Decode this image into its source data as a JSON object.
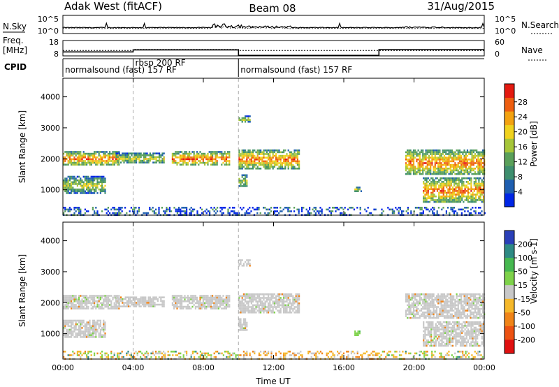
{
  "header": {
    "title": "Adak West (fitACF)",
    "beam": "Beam 08",
    "date": "31/Aug/2015"
  },
  "status_panels": {
    "nsky_label": "N.Sky",
    "nsearch_label": "N.Search",
    "nsky_ticks": [
      "10^5",
      "10^0"
    ],
    "nsearch_ticks": [
      "10^5",
      "10^0"
    ],
    "freq_label_line1": "Freq.",
    "freq_label_line2": "[MHz]",
    "freq_ticks": [
      "18",
      "8"
    ],
    "nave_label": "Nave",
    "nave_ticks": [
      "60",
      "0"
    ],
    "freq_levels_mhz": [
      {
        "x_start": 0,
        "x_end": 4.0,
        "value": 10.6
      },
      {
        "x_start": 4.0,
        "x_end": 10.0,
        "value": 11.9
      },
      {
        "x_start": 10.0,
        "x_end": 18.0,
        "value": 8.3
      },
      {
        "x_start": 18.0,
        "x_end": 24.0,
        "value": 12.1
      }
    ],
    "nave_levels": [
      {
        "x_start": 0,
        "x_end": 4.0,
        "value": 21
      },
      {
        "x_start": 4.0,
        "x_end": 10.0,
        "value": 25
      },
      {
        "x_start": 10.0,
        "x_end": 24.0,
        "value": 21
      }
    ]
  },
  "cpid": {
    "label": "CPID",
    "segments": [
      {
        "text": "normalsound (fast) 157 RF",
        "x_start": 0
      },
      {
        "text": "rbsp 200 RF",
        "x_start": 4.0
      },
      {
        "text": "normalsound (fast) 157 RF",
        "x_start": 10.0
      }
    ]
  },
  "chart_data": [
    {
      "type": "heatmap",
      "name": "Power",
      "ylabel": "Slant Range [km]",
      "ylim": [
        180,
        4600
      ],
      "yticks": [
        "1000",
        "2000",
        "3000",
        "4000"
      ],
      "xlim": [
        0,
        24
      ],
      "colorbar": {
        "label": "Power [dB]",
        "ticks": [
          "4",
          "8",
          "12",
          "16",
          "20",
          "24",
          "28"
        ],
        "colors": [
          "#0026e6",
          "#1f5fb0",
          "#3e8e6e",
          "#5aa05a",
          "#a6c639",
          "#f0d21e",
          "#f3a210",
          "#ee5e10",
          "#e41a10"
        ]
      },
      "echo_regions": [
        {
          "x_start": 0.0,
          "x_end": 3.2,
          "range_start": 1800,
          "range_end": 2250,
          "level": "high"
        },
        {
          "x_start": 0.0,
          "x_end": 2.4,
          "range_start": 900,
          "range_end": 1450,
          "level": "medium"
        },
        {
          "x_start": 3.0,
          "x_end": 5.8,
          "range_start": 1850,
          "range_end": 2200,
          "level": "medium"
        },
        {
          "x_start": 6.2,
          "x_end": 9.5,
          "range_start": 1800,
          "range_end": 2250,
          "level": "high"
        },
        {
          "x_start": 10.0,
          "x_end": 13.5,
          "range_start": 1700,
          "range_end": 2300,
          "level": "high"
        },
        {
          "x_start": 10.0,
          "x_end": 10.5,
          "range_start": 1100,
          "range_end": 1500,
          "level": "medium"
        },
        {
          "x_start": 10.0,
          "x_end": 10.7,
          "range_start": 3200,
          "range_end": 3400,
          "level": "medium"
        },
        {
          "x_start": 16.6,
          "x_end": 17.0,
          "range_start": 950,
          "range_end": 1100,
          "level": "medium"
        },
        {
          "x_start": 19.5,
          "x_end": 24.0,
          "range_start": 1500,
          "range_end": 2300,
          "level": "high"
        },
        {
          "x_start": 20.5,
          "x_end": 24.0,
          "range_start": 600,
          "range_end": 1400,
          "level": "high"
        },
        {
          "x_start": 0.0,
          "x_end": 24.0,
          "range_start": 180,
          "range_end": 450,
          "level": "low"
        }
      ]
    },
    {
      "type": "heatmap",
      "name": "Velocity",
      "ylabel": "Slant Range [km]",
      "ylim": [
        180,
        4600
      ],
      "yticks": [
        "1000",
        "2000",
        "3000",
        "4000"
      ],
      "xlabel": "Time UT",
      "xlim": [
        0,
        24
      ],
      "xticks": [
        "00:00",
        "04:00",
        "08:00",
        "12:00",
        "16:00",
        "20:00",
        "00:00"
      ],
      "colorbar": {
        "label": "Velocity [m s-1]",
        "ticks": [
          "200",
          "100",
          "50",
          "15",
          "-15",
          "-50",
          "-100",
          "-200"
        ],
        "colors": [
          "#2a3fb8",
          "#2e8a84",
          "#46b850",
          "#7ed24a",
          "#c8c8c8",
          "#f5b82a",
          "#f08418",
          "#ec5212",
          "#e01010"
        ]
      },
      "echo_regions": [
        {
          "x_start": 0.0,
          "x_end": 3.2,
          "range_start": 1800,
          "range_end": 2250,
          "level": "ground"
        },
        {
          "x_start": 0.0,
          "x_end": 2.4,
          "range_start": 900,
          "range_end": 1450,
          "level": "ground"
        },
        {
          "x_start": 3.0,
          "x_end": 5.8,
          "range_start": 1850,
          "range_end": 2200,
          "level": "ground"
        },
        {
          "x_start": 6.2,
          "x_end": 9.5,
          "range_start": 1800,
          "range_end": 2250,
          "level": "ground"
        },
        {
          "x_start": 10.0,
          "x_end": 13.5,
          "range_start": 1700,
          "range_end": 2300,
          "level": "ground"
        },
        {
          "x_start": 10.0,
          "x_end": 10.5,
          "range_start": 1100,
          "range_end": 1500,
          "level": "ground"
        },
        {
          "x_start": 10.0,
          "x_end": 10.7,
          "range_start": 3200,
          "range_end": 3400,
          "level": "ground"
        },
        {
          "x_start": 16.6,
          "x_end": 17.0,
          "range_start": 950,
          "range_end": 1100,
          "level": "positive"
        },
        {
          "x_start": 19.5,
          "x_end": 24.0,
          "range_start": 1500,
          "range_end": 2300,
          "level": "ground"
        },
        {
          "x_start": 20.5,
          "x_end": 24.0,
          "range_start": 600,
          "range_end": 1400,
          "level": "ground"
        },
        {
          "x_start": 10.0,
          "x_end": 18.0,
          "range_start": 180,
          "range_end": 450,
          "level": "negative"
        },
        {
          "x_start": 0.0,
          "x_end": 10.0,
          "range_start": 180,
          "range_end": 450,
          "level": "mixed"
        },
        {
          "x_start": 18.0,
          "x_end": 24.0,
          "range_start": 180,
          "range_end": 450,
          "level": "mixed"
        }
      ]
    }
  ]
}
